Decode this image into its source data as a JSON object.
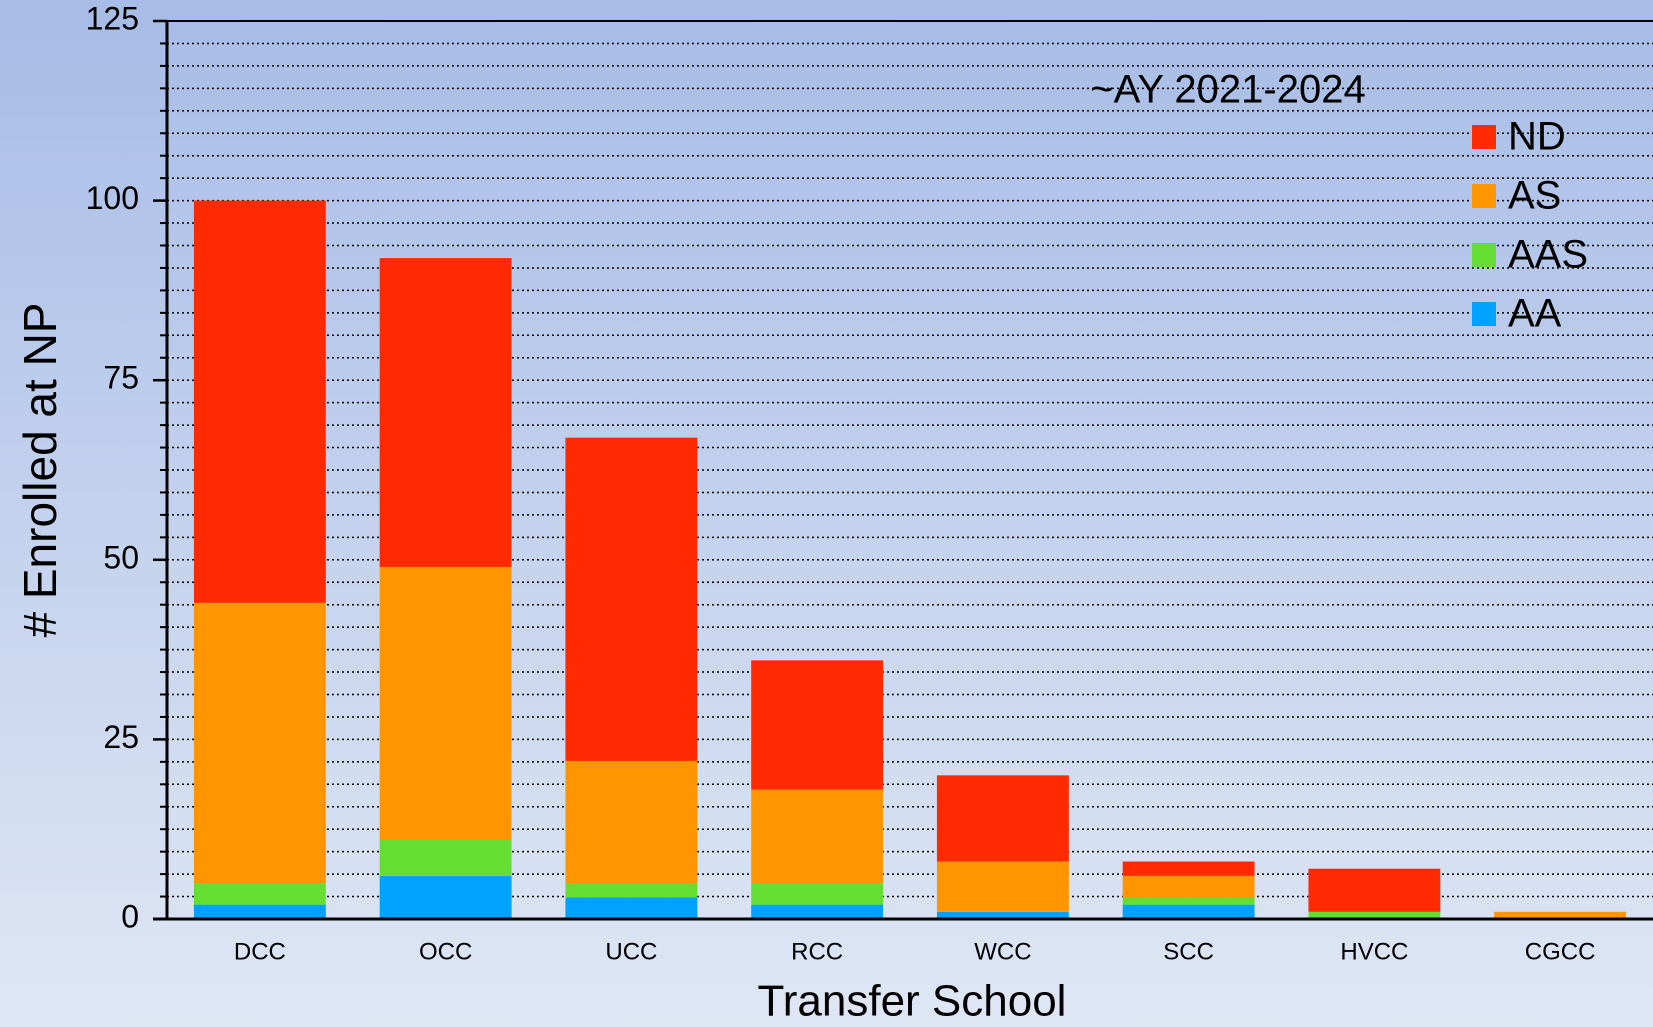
{
  "chart_data": {
    "type": "stacked_bar",
    "annotation": "~AY 2021-2024",
    "x_label": "Transfer School",
    "y_label": "# Enrolled at NP",
    "categories": [
      "DCC",
      "OCC",
      "UCC",
      "RCC",
      "WCC",
      "SCC",
      "HVCC",
      "CGCC"
    ],
    "series": [
      {
        "name": "AA",
        "color": "#00a2ff",
        "values": [
          2,
          6,
          3,
          2,
          1,
          2,
          0,
          0
        ]
      },
      {
        "name": "AAS",
        "color": "#66dd33",
        "values": [
          3,
          5,
          2,
          3,
          0,
          1,
          1,
          0
        ]
      },
      {
        "name": "AS",
        "color": "#ff9500",
        "values": [
          39,
          38,
          17,
          13,
          7,
          3,
          0,
          1
        ]
      },
      {
        "name": "ND",
        "color": "#ff2a00",
        "values": [
          56,
          43,
          45,
          18,
          12,
          2,
          6,
          0
        ]
      }
    ],
    "ylim": [
      0,
      125
    ],
    "yticks": [
      0,
      25,
      50,
      75,
      100,
      125
    ],
    "minor_yticks": [
      3.125,
      6.25,
      9.375,
      12.5,
      15.625,
      18.75,
      21.875,
      28.125,
      31.25,
      34.375,
      37.5,
      40.625,
      43.75,
      46.875,
      53.125,
      56.25,
      59.375,
      62.5,
      65.625,
      68.75,
      71.875,
      78.125,
      81.25,
      84.375,
      87.5,
      90.625,
      93.75,
      96.875,
      103.125,
      106.25,
      109.375,
      112.5,
      115.625,
      118.75,
      121.875
    ],
    "grid": true,
    "legend": "upper right"
  }
}
